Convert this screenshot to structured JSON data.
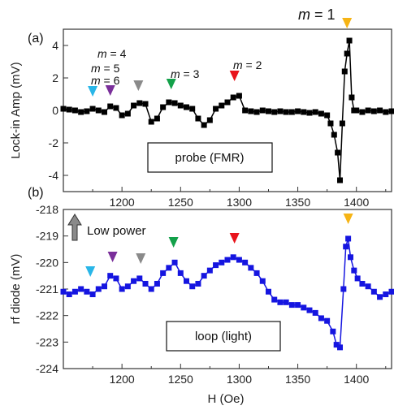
{
  "chart_data": [
    {
      "type": "line",
      "panel": "(a)",
      "xlabel": "",
      "ylabel": "Lock-in Amp (mV)",
      "xlim": [
        1150,
        1430
      ],
      "ylim": [
        -5,
        5
      ],
      "xticks": [
        1200,
        1250,
        1300,
        1350,
        1400
      ],
      "yticks": [
        -4,
        -2,
        0,
        2,
        4
      ],
      "grid": false,
      "box_label": "probe (FMR)",
      "series": [
        {
          "color": "#000000",
          "marker": "square",
          "x": [
            1150,
            1155,
            1160,
            1165,
            1170,
            1175,
            1180,
            1185,
            1190,
            1195,
            1200,
            1205,
            1210,
            1215,
            1220,
            1225,
            1230,
            1235,
            1240,
            1245,
            1250,
            1255,
            1260,
            1265,
            1270,
            1275,
            1280,
            1285,
            1290,
            1295,
            1300,
            1305,
            1310,
            1315,
            1320,
            1325,
            1330,
            1335,
            1340,
            1345,
            1350,
            1355,
            1360,
            1365,
            1370,
            1375,
            1378,
            1381,
            1384,
            1386,
            1388,
            1390,
            1392,
            1394,
            1396,
            1398,
            1400,
            1405,
            1410,
            1415,
            1420,
            1425,
            1430
          ],
          "y": [
            0.1,
            0.05,
            0.0,
            -0.1,
            -0.05,
            0.1,
            0.0,
            -0.1,
            0.25,
            0.15,
            -0.3,
            -0.2,
            0.3,
            0.45,
            0.4,
            -0.7,
            -0.5,
            0.2,
            0.5,
            0.45,
            0.3,
            0.2,
            0.1,
            -0.5,
            -0.9,
            -0.6,
            0.1,
            0.3,
            0.5,
            0.8,
            0.9,
            0.0,
            -0.05,
            -0.1,
            0.0,
            -0.05,
            -0.1,
            -0.05,
            -0.1,
            -0.1,
            -0.05,
            -0.1,
            -0.15,
            -0.1,
            -0.2,
            -0.3,
            -0.8,
            -1.5,
            -2.6,
            -4.3,
            -0.8,
            2.4,
            3.5,
            4.3,
            0.8,
            0.0,
            0.0,
            -0.1,
            0.0,
            -0.05,
            0.0,
            -0.1,
            -0.05
          ]
        }
      ],
      "markers": [
        {
          "label": "m = 6",
          "x": 1175,
          "color": "#29b6e8"
        },
        {
          "label": "m = 5",
          "x": 1190,
          "color": "#7a2f9a"
        },
        {
          "label": "m = 4",
          "x": 1214,
          "color": "#8a8a8a"
        },
        {
          "label": "m = 3",
          "x": 1242,
          "color": "#13a14a"
        },
        {
          "label": "m = 2",
          "x": 1296,
          "color": "#e8141c"
        },
        {
          "label": "m = 1",
          "x": 1392,
          "color": "#f6b415"
        }
      ]
    },
    {
      "type": "line",
      "panel": "(b)",
      "xlabel": "H (Oe)",
      "ylabel": "rf diode (mV)",
      "xlim": [
        1150,
        1430
      ],
      "ylim": [
        -224,
        -218
      ],
      "xticks": [
        1200,
        1250,
        1300,
        1350,
        1400
      ],
      "yticks": [
        -224,
        -223,
        -222,
        -221,
        -220,
        -219,
        -218
      ],
      "grid": false,
      "box_label": "loop (light)",
      "annotation": "Low power",
      "series": [
        {
          "color": "#1515e0",
          "marker": "square",
          "x": [
            1150,
            1155,
            1160,
            1165,
            1170,
            1175,
            1180,
            1185,
            1190,
            1195,
            1200,
            1205,
            1210,
            1215,
            1220,
            1225,
            1230,
            1235,
            1240,
            1245,
            1250,
            1255,
            1260,
            1265,
            1270,
            1275,
            1280,
            1285,
            1290,
            1295,
            1300,
            1305,
            1310,
            1315,
            1320,
            1325,
            1330,
            1335,
            1340,
            1345,
            1350,
            1355,
            1360,
            1365,
            1370,
            1375,
            1380,
            1383,
            1386,
            1389,
            1391,
            1393,
            1395,
            1398,
            1401,
            1405,
            1410,
            1415,
            1420,
            1425,
            1430
          ],
          "y": [
            -221.1,
            -221.2,
            -221.1,
            -221.0,
            -221.1,
            -221.2,
            -221.0,
            -220.9,
            -220.5,
            -220.6,
            -221.0,
            -220.9,
            -220.7,
            -220.6,
            -220.8,
            -221.0,
            -220.8,
            -220.4,
            -220.2,
            -220.0,
            -220.4,
            -220.7,
            -220.9,
            -220.8,
            -220.5,
            -220.3,
            -220.1,
            -220.0,
            -219.9,
            -219.8,
            -219.9,
            -220.0,
            -220.2,
            -220.4,
            -220.7,
            -221.1,
            -221.4,
            -221.5,
            -221.5,
            -221.6,
            -221.6,
            -221.7,
            -221.8,
            -221.9,
            -222.1,
            -222.2,
            -222.6,
            -223.1,
            -223.2,
            -221.0,
            -219.4,
            -219.1,
            -219.8,
            -220.3,
            -220.6,
            -220.8,
            -220.9,
            -221.1,
            -221.3,
            -221.2,
            -221.1
          ]
        }
      ],
      "markers": [
        {
          "label": "",
          "x": 1173,
          "color": "#29b6e8"
        },
        {
          "label": "",
          "x": 1192,
          "color": "#7a2f9a"
        },
        {
          "label": "",
          "x": 1216,
          "color": "#8a8a8a"
        },
        {
          "label": "",
          "x": 1244,
          "color": "#13a14a"
        },
        {
          "label": "",
          "x": 1296,
          "color": "#e8141c"
        },
        {
          "label": "",
          "x": 1393,
          "color": "#f6b415"
        }
      ]
    }
  ]
}
